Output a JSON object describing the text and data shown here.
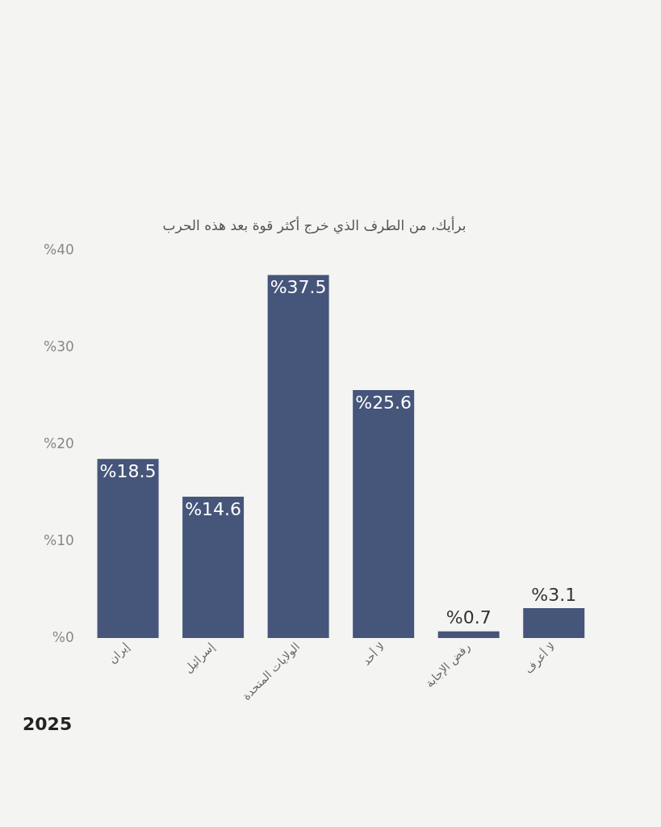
{
  "chart_data": {
    "type": "bar",
    "title": "برأيك، من الطرف الذي خرج أكثر قوة بعد هذه الحرب",
    "categories": [
      "إيران",
      "إسرائيل",
      "الولايات المتحدة",
      "لا أحد",
      "رفض الإجابة",
      "لا أعرف"
    ],
    "values": [
      18.5,
      14.6,
      37.5,
      25.6,
      0.7,
      3.1
    ],
    "value_labels": [
      "%18.5",
      "%14.6",
      "%37.5",
      "%25.6",
      "%0.7",
      "%3.1"
    ],
    "color": "#46557a",
    "ylim": [
      0,
      40
    ],
    "yticks": [
      {
        "value": 0,
        "label": "%0"
      },
      {
        "value": 10,
        "label": "%10"
      },
      {
        "value": 20,
        "label": "%20"
      },
      {
        "value": 30,
        "label": "%30"
      },
      {
        "value": 40,
        "label": "%40"
      }
    ],
    "grid": false,
    "legend": false,
    "annotations": [
      "2025"
    ]
  }
}
